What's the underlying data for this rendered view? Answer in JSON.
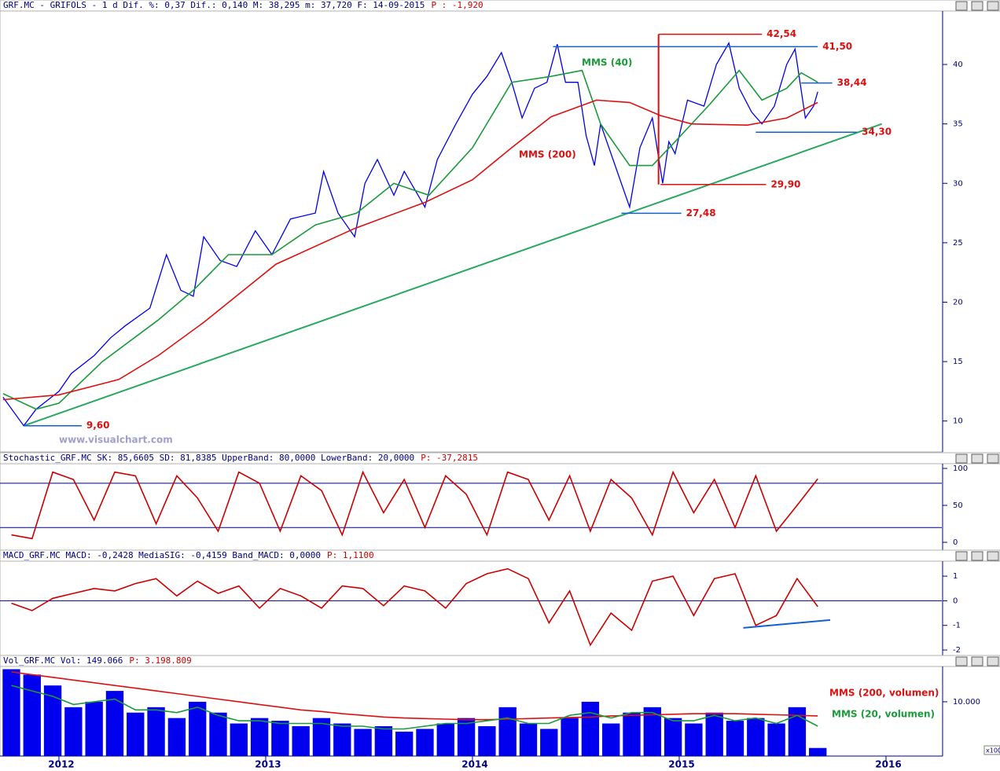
{
  "chart_data": [
    {
      "type": "line",
      "title": "GRF.MC - GRIFOLS -   1 d Dif. %: 0,37 Dif.: 0,140 M: 38,295 m: 37,720 F: 14-09-2015",
      "title_p": "P : -1,920",
      "watermark": "www.visualchart.com",
      "xlim": [
        2011.715,
        2016.27
      ],
      "ylim": [
        7.4,
        44.5
      ],
      "yticks": [
        10,
        15,
        20,
        25,
        30,
        35,
        40
      ],
      "series": [
        {
          "color": "#0000ee",
          "x": [
            2011.73,
            2011.83,
            2011.89,
            2012.0,
            2012.06,
            2012.17,
            2012.25,
            2012.32,
            2012.44,
            2012.52,
            2012.59,
            2012.65,
            2012.7,
            2012.78,
            2012.86,
            2012.95,
            2013.03,
            2013.12,
            2013.24,
            2013.28,
            2013.35,
            2013.43,
            2013.48,
            2013.54,
            2013.62,
            2013.67,
            2013.77,
            2013.83,
            2013.92,
            2014.0,
            2014.07,
            2014.14,
            2014.19,
            2014.24,
            2014.3,
            2014.36,
            2014.41,
            2014.45,
            2014.51,
            2014.55,
            2014.59,
            2014.62,
            2014.68,
            2014.76,
            2014.81,
            2014.87,
            2014.92,
            2014.95,
            2014.98,
            2015.04,
            2015.12,
            2015.18,
            2015.24,
            2015.29,
            2015.35,
            2015.4,
            2015.46,
            2015.52,
            2015.56,
            2015.61,
            2015.65,
            2015.67
          ],
          "values": [
            12.0,
            9.6,
            11.0,
            12.5,
            14,
            15.5,
            17,
            18,
            19.5,
            24,
            21,
            20.5,
            25.5,
            23.5,
            23,
            26,
            24,
            27,
            27.5,
            31,
            27.5,
            25.5,
            30,
            32,
            29,
            31,
            28,
            32,
            35,
            37.5,
            39,
            41,
            38.5,
            35.5,
            38,
            38.5,
            41.7,
            38.5,
            38.5,
            34,
            31.5,
            35,
            32,
            28,
            33,
            35.5,
            30,
            33.5,
            32.5,
            37,
            36.5,
            40,
            41.8,
            38,
            36,
            35,
            36.5,
            40,
            41.3,
            35.5,
            36.5,
            37.7
          ]
        },
        {
          "name": "MMS (40)",
          "color": "#1a9a3a",
          "x": [
            2011.73,
            2011.89,
            2012.0,
            2012.21,
            2012.48,
            2012.65,
            2012.82,
            2013.03,
            2013.24,
            2013.44,
            2013.62,
            2013.79,
            2014.0,
            2014.19,
            2014.38,
            2014.53,
            2014.62,
            2014.76,
            2014.87,
            2014.98,
            2015.14,
            2015.29,
            2015.4,
            2015.52,
            2015.59,
            2015.67
          ],
          "values": [
            12.3,
            11.0,
            11.5,
            15,
            18.5,
            21,
            24,
            24,
            26.5,
            27.5,
            30,
            29,
            33,
            38.5,
            39,
            39.5,
            35,
            31.5,
            31.5,
            33.5,
            36.5,
            39.5,
            37,
            38,
            39.3,
            38.5
          ]
        },
        {
          "name": "MMS (200)",
          "color": "#dd1010",
          "x": [
            2011.73,
            2012.0,
            2012.29,
            2012.48,
            2012.7,
            2013.05,
            2013.43,
            2013.77,
            2014.0,
            2014.19,
            2014.38,
            2014.6,
            2014.76,
            2014.91,
            2015.06,
            2015.33,
            2015.52,
            2015.67
          ],
          "values": [
            11.8,
            12.2,
            13.5,
            15.5,
            18.3,
            23.2,
            26.2,
            28.4,
            30.3,
            33.0,
            35.6,
            37.0,
            36.8,
            35.7,
            35.0,
            34.9,
            35.5,
            36.8
          ]
        }
      ],
      "trendline": {
        "color": "#2aa860",
        "x": [
          2011.83,
          2015.98
        ],
        "values": [
          9.6,
          35
        ]
      },
      "levels": [
        {
          "value": 42.54,
          "label": "42,54",
          "color": "#dd1010",
          "x": [
            2014.9,
            2015.4
          ]
        },
        {
          "value": 41.5,
          "label": "41,50",
          "color": "#1060d0",
          "x": [
            2014.39,
            2015.67
          ]
        },
        {
          "value": 38.44,
          "label": "38,44",
          "color": "#1060d0",
          "x": [
            2015.59,
            2015.74
          ]
        },
        {
          "value": 34.3,
          "label": "34,30",
          "color": "#1060d0",
          "x": [
            2015.37,
            2015.86
          ]
        },
        {
          "value": 29.9,
          "label": "29,90",
          "color": "#dd1010",
          "x": [
            2014.91,
            2015.42
          ]
        },
        {
          "value": 27.48,
          "label": "27,48",
          "color": "#1060d0",
          "x": [
            2014.72,
            2015.01
          ]
        },
        {
          "value": 9.6,
          "label": "9,60",
          "color": "#1060d0",
          "x": [
            2011.83,
            2012.11
          ]
        }
      ]
    },
    {
      "type": "line",
      "title": "Stochastic_GRF.MC SK: 85,6605 SD: 81,8385 UpperBand: 80,0000 LowerBand: 20,0000",
      "title_p": "P: -37,2815",
      "xlim": [
        2011.715,
        2016.27
      ],
      "ylim": [
        -10.6,
        106.4
      ],
      "yticks": [
        0,
        50,
        100
      ],
      "bands": [
        80,
        20
      ],
      "series": [
        {
          "color": "#cc0000",
          "x": [
            2011.77,
            2011.87,
            2011.97,
            2012.07,
            2012.17,
            2012.27,
            2012.37,
            2012.47,
            2012.57,
            2012.67,
            2012.77,
            2012.87,
            2012.97,
            2013.07,
            2013.17,
            2013.27,
            2013.37,
            2013.47,
            2013.57,
            2013.67,
            2013.77,
            2013.87,
            2013.97,
            2014.07,
            2014.17,
            2014.27,
            2014.37,
            2014.47,
            2014.57,
            2014.67,
            2014.77,
            2014.87,
            2014.97,
            2015.07,
            2015.17,
            2015.27,
            2015.37,
            2015.47,
            2015.57,
            2015.67
          ],
          "values": [
            10,
            5,
            95,
            85,
            30,
            95,
            90,
            25,
            90,
            60,
            15,
            95,
            80,
            15,
            90,
            70,
            10,
            95,
            40,
            85,
            20,
            90,
            65,
            10,
            95,
            85,
            30,
            90,
            15,
            85,
            60,
            10,
            95,
            40,
            85,
            20,
            90,
            15,
            50,
            86
          ]
        }
      ]
    },
    {
      "type": "line",
      "title": "MACD_GRF.MC MACD: -0,2428 MediaSIG: -0,4159 Band_MACD: 0,0000",
      "title_p": "P: 1,1100",
      "xlim": [
        2011.715,
        2016.27
      ],
      "ylim": [
        -2.35,
        1.61
      ],
      "yticks": [
        1,
        0,
        -1,
        -2
      ],
      "bands": [
        0
      ],
      "trendline": {
        "color": "#1060d0",
        "x": [
          2015.31,
          2015.73
        ],
        "values": [
          -1.1,
          -0.78
        ]
      },
      "series": [
        {
          "color": "#cc0000",
          "x": [
            2011.77,
            2011.87,
            2011.97,
            2012.07,
            2012.17,
            2012.27,
            2012.37,
            2012.47,
            2012.57,
            2012.67,
            2012.77,
            2012.87,
            2012.97,
            2013.07,
            2013.17,
            2013.27,
            2013.37,
            2013.47,
            2013.57,
            2013.67,
            2013.77,
            2013.87,
            2013.97,
            2014.07,
            2014.17,
            2014.27,
            2014.37,
            2014.47,
            2014.57,
            2014.67,
            2014.77,
            2014.87,
            2014.97,
            2015.07,
            2015.17,
            2015.27,
            2015.37,
            2015.47,
            2015.57,
            2015.67
          ],
          "values": [
            -0.1,
            -0.4,
            0.1,
            0.3,
            0.5,
            0.4,
            0.7,
            0.9,
            0.2,
            0.8,
            0.3,
            0.6,
            -0.3,
            0.5,
            0.2,
            -0.3,
            0.6,
            0.5,
            -0.2,
            0.6,
            0.4,
            -0.3,
            0.7,
            1.1,
            1.3,
            0.9,
            -0.9,
            0.4,
            -1.8,
            -0.5,
            -1.2,
            0.8,
            1.0,
            -0.6,
            0.9,
            1.1,
            -1.0,
            -0.6,
            0.9,
            -0.24
          ]
        }
      ]
    },
    {
      "type": "bar",
      "title": "Vol_GRF.MC Vol: 149.066",
      "title_p": "P: 3.198.809",
      "unit_label": "x100",
      "xlim": [
        2011.715,
        2016.27
      ],
      "ylim": [
        0,
        16500
      ],
      "xticks": [
        2012,
        2013,
        2014,
        2015,
        2016
      ],
      "yticks": [
        {
          "value": 10000,
          "label": "10.000"
        }
      ],
      "series": [
        {
          "color": "#0000ee",
          "x": [
            2011.77,
            2011.87,
            2011.97,
            2012.07,
            2012.17,
            2012.27,
            2012.37,
            2012.47,
            2012.57,
            2012.67,
            2012.77,
            2012.87,
            2012.97,
            2013.07,
            2013.17,
            2013.27,
            2013.37,
            2013.47,
            2013.57,
            2013.67,
            2013.77,
            2013.87,
            2013.97,
            2014.07,
            2014.17,
            2014.27,
            2014.37,
            2014.47,
            2014.57,
            2014.67,
            2014.77,
            2014.87,
            2014.97,
            2015.07,
            2015.17,
            2015.27,
            2015.37,
            2015.47,
            2015.57,
            2015.67
          ],
          "values": [
            16000,
            15000,
            13000,
            9000,
            10000,
            12000,
            8000,
            9000,
            7000,
            10000,
            8000,
            6000,
            7000,
            6500,
            5500,
            7000,
            6000,
            5000,
            5500,
            4500,
            5000,
            6000,
            7000,
            5500,
            9000,
            6000,
            5000,
            7000,
            10000,
            6000,
            8000,
            9000,
            7000,
            6000,
            8000,
            6500,
            7000,
            6000,
            9000,
            1490.66
          ]
        },
        {
          "name": "MMS (200, volumen)",
          "color": "#dd1010",
          "style": "line",
          "x": [
            2011.77,
            2011.87,
            2011.97,
            2012.07,
            2012.17,
            2012.27,
            2012.37,
            2012.47,
            2012.57,
            2012.67,
            2012.77,
            2012.87,
            2012.97,
            2013.07,
            2013.17,
            2013.27,
            2013.37,
            2013.47,
            2013.57,
            2013.67,
            2013.77,
            2013.87,
            2013.97,
            2014.07,
            2014.17,
            2014.27,
            2014.37,
            2014.47,
            2014.57,
            2014.67,
            2014.77,
            2014.87,
            2014.97,
            2015.07,
            2015.17,
            2015.27,
            2015.37,
            2015.47,
            2015.57,
            2015.67
          ],
          "values": [
            15500,
            15000,
            14500,
            14000,
            13500,
            13000,
            12500,
            12000,
            11500,
            11000,
            10500,
            10000,
            9500,
            9000,
            8500,
            8200,
            7800,
            7500,
            7200,
            7000,
            6900,
            6800,
            6700,
            6700,
            6800,
            6900,
            7000,
            7100,
            7200,
            7400,
            7500,
            7600,
            7700,
            7800,
            7800,
            7800,
            7700,
            7600,
            7500,
            7400
          ]
        },
        {
          "name": "MMS (20, volumen)",
          "color": "#1a9a3a",
          "style": "line",
          "x": [
            2011.77,
            2011.87,
            2011.97,
            2012.07,
            2012.17,
            2012.27,
            2012.37,
            2012.47,
            2012.57,
            2012.67,
            2012.77,
            2012.87,
            2012.97,
            2013.07,
            2013.17,
            2013.27,
            2013.37,
            2013.47,
            2013.57,
            2013.67,
            2013.77,
            2013.87,
            2013.97,
            2014.07,
            2014.17,
            2014.27,
            2014.37,
            2014.47,
            2014.57,
            2014.67,
            2014.77,
            2014.87,
            2014.97,
            2015.07,
            2015.17,
            2015.27,
            2015.37,
            2015.47,
            2015.57,
            2015.67
          ],
          "values": [
            13000,
            12000,
            11000,
            9500,
            10000,
            10500,
            8500,
            8500,
            8000,
            9000,
            7500,
            6500,
            6500,
            6000,
            6000,
            6000,
            5500,
            5500,
            5000,
            5000,
            5500,
            6000,
            6000,
            6500,
            7000,
            6000,
            6000,
            7500,
            8000,
            7000,
            8000,
            8000,
            6500,
            6500,
            7500,
            6500,
            7000,
            6000,
            7500,
            5500
          ]
        }
      ]
    }
  ]
}
